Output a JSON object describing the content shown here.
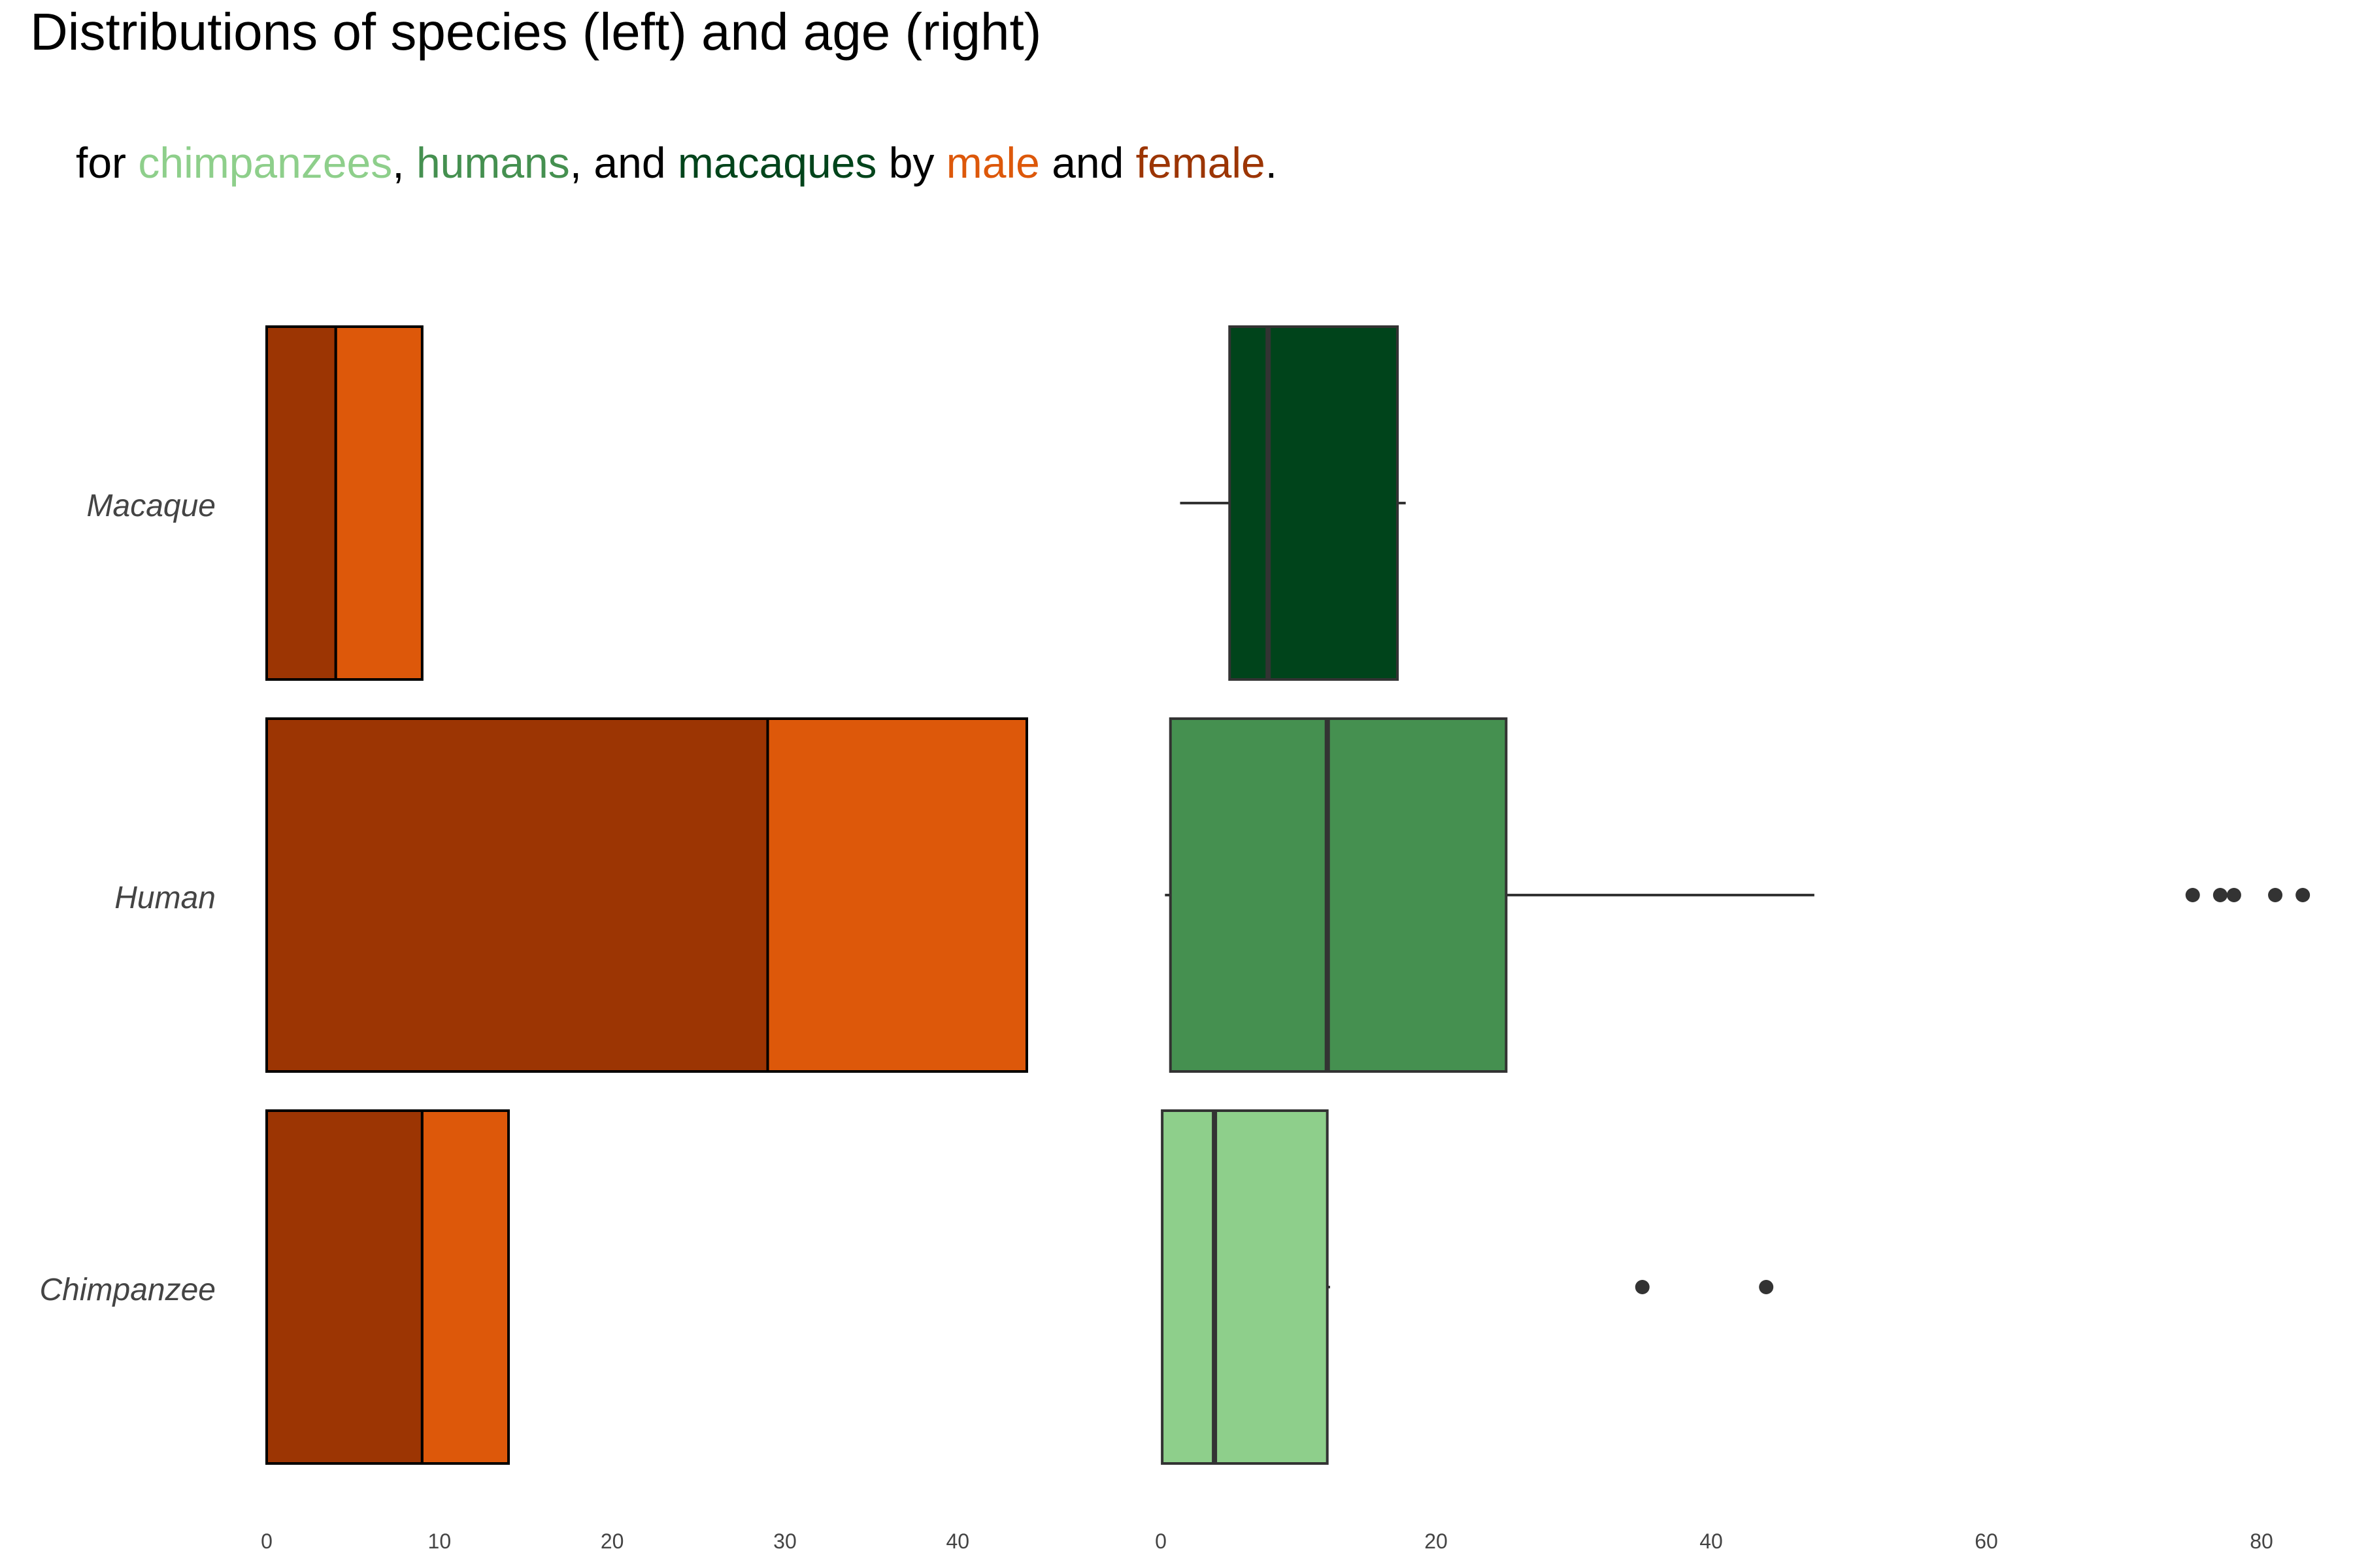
{
  "chart_data": [
    {
      "type": "bar",
      "panel": "left",
      "stacked": true,
      "orientation": "horizontal",
      "categories": [
        "Macaque",
        "Human",
        "Chimpanzee"
      ],
      "series": [
        {
          "name": "female",
          "color": "#9c3503",
          "values": [
            4,
            29,
            9
          ]
        },
        {
          "name": "male",
          "color": "#dd580a",
          "values": [
            5,
            15,
            5
          ]
        }
      ],
      "xlim": [
        0,
        50
      ],
      "xticks": [
        0,
        10,
        20,
        30,
        40
      ],
      "grid": false
    },
    {
      "type": "box",
      "panel": "right",
      "orientation": "horizontal",
      "categories": [
        "Macaque",
        "Human",
        "Chimpanzee"
      ],
      "boxes": [
        {
          "category": "Macaque",
          "color": "#00441b",
          "whisker_low": 1.4,
          "q1": 5.0,
          "median": 7.8,
          "q3": 17.2,
          "whisker_high": 17.8,
          "outliers": []
        },
        {
          "category": "Human",
          "color": "#459050",
          "whisker_low": 0.3,
          "q1": 0.7,
          "median": 12.1,
          "q3": 25.1,
          "whisker_high": 47.5,
          "outliers": [
            75,
            77,
            78,
            81,
            83
          ]
        },
        {
          "category": "Chimpanzee",
          "color": "#8ecf8b",
          "whisker_low": 0.1,
          "q1": 0.1,
          "median": 3.9,
          "q3": 12.1,
          "whisker_high": 12.3,
          "outliers": [
            35,
            44
          ]
        }
      ],
      "xlim": [
        0,
        85
      ],
      "xticks": [
        0,
        20,
        40,
        60,
        80
      ],
      "grid": false
    }
  ],
  "title": "Distributions of species (left) and age (right)",
  "subtitle": [
    {
      "text": "for ",
      "color": "#000000"
    },
    {
      "text": "chimpanzees",
      "color": "#8ecf8b"
    },
    {
      "text": ", ",
      "color": "#000000"
    },
    {
      "text": "humans",
      "color": "#459050"
    },
    {
      "text": ", and ",
      "color": "#000000"
    },
    {
      "text": "macaques",
      "color": "#00441b"
    },
    {
      "text": " by ",
      "color": "#000000"
    },
    {
      "text": "male",
      "color": "#dd580a"
    },
    {
      "text": " and ",
      "color": "#000000"
    },
    {
      "text": "female",
      "color": "#9c3503"
    },
    {
      "text": ".",
      "color": "#000000"
    }
  ]
}
